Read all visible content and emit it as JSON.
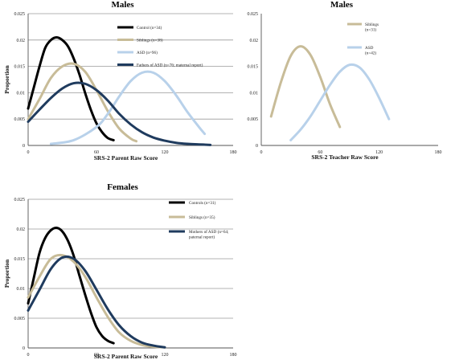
{
  "colors": {
    "control": "#000000",
    "siblings": "#c8bc98",
    "asd": "#b8d1ea",
    "parent": "#1f3b5e"
  },
  "chart_data": [
    {
      "type": "line",
      "title": "Males",
      "xlabel": "SRS-2 Parent Raw Score",
      "ylabel": "Proportion",
      "xlim": [
        0,
        180
      ],
      "ylim": [
        0,
        0.025
      ],
      "xticks": [
        "0",
        "60",
        "120",
        "180"
      ],
      "yticks": [
        "0",
        "0.005",
        "0.01",
        "0.015",
        "0.02",
        "0.025"
      ],
      "grid": true,
      "legend_position": "top-right",
      "series": [
        {
          "name": "Control (n=34)",
          "color_key": "control",
          "x": [
            0,
            5,
            10,
            15,
            20,
            25,
            30,
            35,
            40,
            45,
            50,
            55,
            60,
            65,
            70,
            75
          ],
          "y": [
            0.007,
            0.011,
            0.015,
            0.0185,
            0.02,
            0.0205,
            0.02,
            0.0188,
            0.0165,
            0.0135,
            0.01,
            0.0068,
            0.0042,
            0.0025,
            0.0014,
            0.001
          ]
        },
        {
          "name": "Siblings (n=38)",
          "color_key": "siblings",
          "x": [
            0,
            10,
            20,
            30,
            40,
            50,
            60,
            70,
            80,
            90,
            95
          ],
          "y": [
            0.005,
            0.0088,
            0.0128,
            0.015,
            0.0155,
            0.014,
            0.0105,
            0.0065,
            0.0032,
            0.0013,
            0.0008
          ]
        },
        {
          "name": "ASD (n=96)",
          "color_key": "asd",
          "x": [
            20,
            40,
            60,
            70,
            80,
            90,
            100,
            110,
            120,
            130,
            140,
            150,
            155
          ],
          "y": [
            0.0003,
            0.001,
            0.0035,
            0.006,
            0.0093,
            0.0122,
            0.0138,
            0.0138,
            0.0122,
            0.0095,
            0.0063,
            0.0035,
            0.0022
          ]
        },
        {
          "name": "Fathers of ASD (n=76; maternal report)",
          "color_key": "parent",
          "x": [
            0,
            10,
            20,
            30,
            40,
            50,
            60,
            70,
            80,
            90,
            100,
            110,
            120,
            130,
            140,
            150,
            160
          ],
          "y": [
            0.0045,
            0.0068,
            0.009,
            0.0108,
            0.0118,
            0.0117,
            0.0105,
            0.0085,
            0.006,
            0.004,
            0.0025,
            0.0015,
            0.0009,
            0.0005,
            0.0003,
            0.0002,
            0.0001
          ]
        }
      ]
    },
    {
      "type": "line",
      "title": "Males",
      "xlabel": "SRS-2 Teacher Raw Score",
      "ylabel": "",
      "xlim": [
        0,
        180
      ],
      "ylim": [
        0,
        0.025
      ],
      "xticks": [
        "0",
        "60",
        "120",
        "180"
      ],
      "yticks": [
        "0",
        "0.005",
        "0.01",
        "0.015",
        "0.02",
        "0.025"
      ],
      "grid": false,
      "legend_position": "top-right",
      "series": [
        {
          "name": "Siblings (n=31)",
          "color_key": "siblings",
          "x": [
            10,
            20,
            30,
            40,
            50,
            60,
            70,
            80
          ],
          "y": [
            0.0055,
            0.012,
            0.017,
            0.0188,
            0.0172,
            0.013,
            0.0078,
            0.0035
          ]
        },
        {
          "name": "ASD (n=42)",
          "color_key": "asd",
          "x": [
            30,
            40,
            50,
            60,
            70,
            80,
            90,
            100,
            110,
            120,
            130
          ],
          "y": [
            0.001,
            0.003,
            0.0055,
            0.0085,
            0.0115,
            0.014,
            0.0153,
            0.0148,
            0.0125,
            0.009,
            0.005
          ]
        }
      ]
    },
    {
      "type": "line",
      "title": "Females",
      "xlabel": "SRS-2 Parent Raw Score",
      "ylabel": "Proportion",
      "xlim": [
        0,
        180
      ],
      "ylim": [
        0,
        0.025
      ],
      "xticks": [
        "0",
        "60",
        "120",
        "180"
      ],
      "yticks": [
        "0",
        "0.005",
        "0.01",
        "0.015",
        "0.02",
        "0.025"
      ],
      "grid": true,
      "legend_position": "top-right",
      "series": [
        {
          "name": "Controls (n=31)",
          "color_key": "control",
          "x": [
            0,
            5,
            10,
            15,
            20,
            25,
            30,
            35,
            40,
            45,
            50,
            55,
            60,
            65,
            70,
            75
          ],
          "y": [
            0.0075,
            0.0118,
            0.016,
            0.0185,
            0.0198,
            0.0202,
            0.0196,
            0.018,
            0.0155,
            0.0122,
            0.009,
            0.006,
            0.0035,
            0.002,
            0.0012,
            0.0008
          ]
        },
        {
          "name": "Siblings (n=35)",
          "color_key": "siblings",
          "x": [
            0,
            10,
            20,
            30,
            40,
            50,
            60,
            70,
            80,
            90,
            100,
            110,
            120
          ],
          "y": [
            0.0085,
            0.012,
            0.015,
            0.0156,
            0.0145,
            0.012,
            0.0085,
            0.0052,
            0.0026,
            0.0012,
            0.0005,
            0.0002,
            0.0001
          ]
        },
        {
          "name": "Mothers of ASD (n=64; paternal report)",
          "color_key": "parent",
          "x": [
            0,
            10,
            20,
            30,
            40,
            50,
            60,
            70,
            80,
            90,
            100,
            110,
            120
          ],
          "y": [
            0.0063,
            0.0098,
            0.0133,
            0.0152,
            0.015,
            0.013,
            0.0098,
            0.0065,
            0.0038,
            0.002,
            0.0009,
            0.0004,
            0.0001
          ]
        }
      ]
    }
  ]
}
